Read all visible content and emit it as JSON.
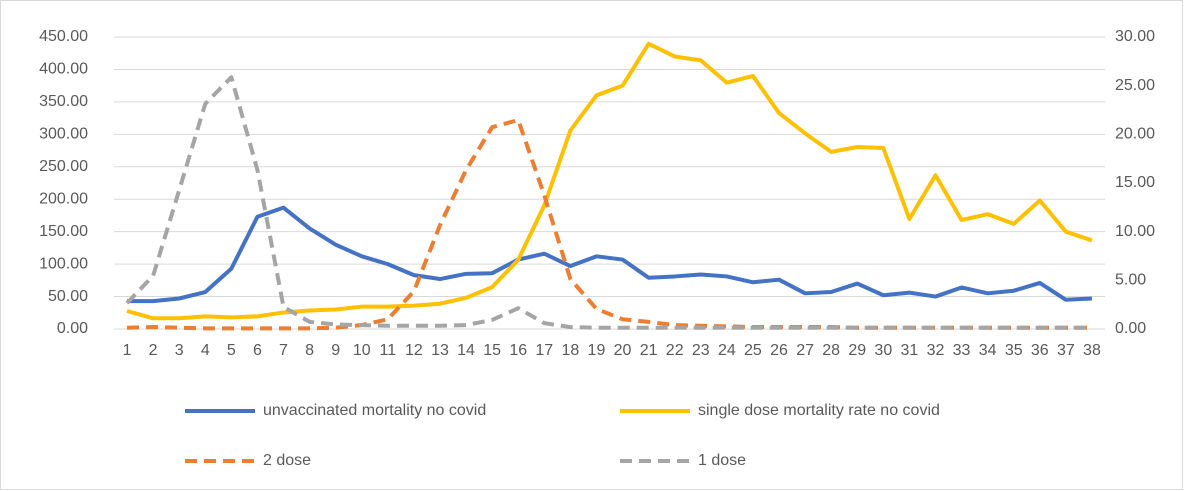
{
  "chart_data": {
    "type": "line",
    "categories": [
      "1",
      "2",
      "3",
      "4",
      "5",
      "6",
      "7",
      "8",
      "9",
      "10",
      "11",
      "12",
      "13",
      "14",
      "15",
      "16",
      "17",
      "18",
      "19",
      "20",
      "21",
      "22",
      "23",
      "24",
      "25",
      "26",
      "27",
      "28",
      "29",
      "30",
      "31",
      "32",
      "33",
      "34",
      "35",
      "36",
      "37",
      "38"
    ],
    "series": [
      {
        "name": "unvaccinated mortality no covid",
        "color": "#4472c4",
        "dash": false,
        "axis": "y",
        "values": [
          43,
          43,
          47,
          57,
          93,
          173,
          187,
          155,
          130,
          112,
          100,
          83,
          77,
          85,
          86,
          107,
          116,
          97,
          112,
          107,
          79,
          81,
          84,
          81,
          72,
          76,
          55,
          57,
          70,
          52,
          56,
          50,
          64,
          55,
          59,
          71,
          45,
          47
        ]
      },
      {
        "name": "single dose mortality rate no covid",
        "color": "#ffc000",
        "dash": false,
        "axis": "y2",
        "values": [
          1.85,
          1.1,
          1.1,
          1.3,
          1.2,
          1.3,
          1.7,
          1.9,
          2.0,
          2.3,
          2.3,
          2.4,
          2.6,
          3.2,
          4.3,
          7.1,
          12.7,
          20.4,
          24.0,
          25.0,
          29.3,
          28.0,
          27.6,
          25.3,
          26.0,
          22.2,
          20.1,
          18.2,
          18.7,
          18.6,
          11.3,
          15.8,
          11.2,
          11.8,
          10.8,
          13.2,
          10.0,
          9.1
        ]
      },
      {
        "name": "2 dose",
        "color": "#ed7d31",
        "dash": true,
        "axis": "y",
        "values": [
          2,
          3,
          2,
          1,
          1,
          1,
          1,
          1,
          2,
          6,
          15,
          58,
          160,
          245,
          311,
          322,
          206,
          77,
          31,
          15,
          11,
          6,
          5,
          4,
          3,
          3,
          3,
          3,
          2,
          2,
          2,
          2,
          2,
          2,
          2,
          2,
          2,
          2
        ]
      },
      {
        "name": "1 dose",
        "color": "#a5a5a5",
        "dash": true,
        "axis": "y",
        "values": [
          40,
          82,
          214,
          347,
          388,
          245,
          34,
          11,
          7,
          6,
          5,
          5,
          5,
          6,
          14,
          32,
          9,
          3,
          2,
          2,
          2,
          2,
          2,
          2,
          2,
          2,
          2,
          2,
          2,
          2,
          2,
          2,
          2,
          2,
          2,
          2,
          2,
          2
        ]
      }
    ],
    "ylim": [
      0,
      450
    ],
    "yticks": [
      {
        "value": 0,
        "label": "0.00"
      },
      {
        "value": 50,
        "label": "50.00"
      },
      {
        "value": 100,
        "label": "100.00"
      },
      {
        "value": 150,
        "label": "150.00"
      },
      {
        "value": 200,
        "label": "200.00"
      },
      {
        "value": 250,
        "label": "250.00"
      },
      {
        "value": 300,
        "label": "300.00"
      },
      {
        "value": 350,
        "label": "350.00"
      },
      {
        "value": 400,
        "label": "400.00"
      },
      {
        "value": 450,
        "label": "450.00"
      }
    ],
    "y2lim": [
      0,
      30
    ],
    "y2ticks": [
      {
        "value": 0,
        "label": "0.00"
      },
      {
        "value": 5,
        "label": "5.00"
      },
      {
        "value": 10,
        "label": "10.00"
      },
      {
        "value": 15,
        "label": "15.00"
      },
      {
        "value": 20,
        "label": "20.00"
      },
      {
        "value": 25,
        "label": "25.00"
      },
      {
        "value": 30,
        "label": "30.00"
      }
    ],
    "grid": true,
    "legend": "bottom"
  }
}
